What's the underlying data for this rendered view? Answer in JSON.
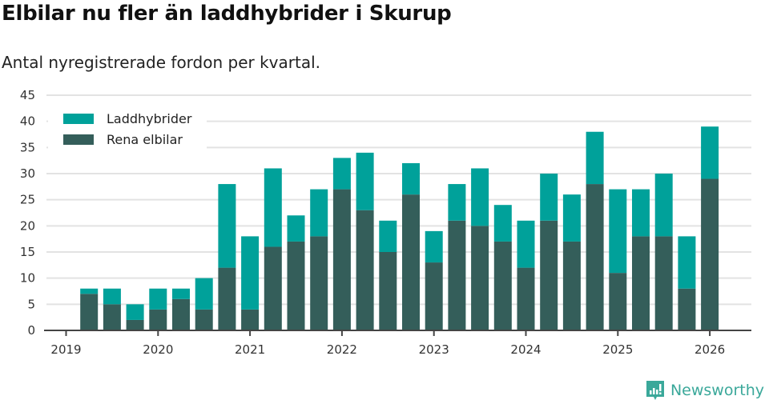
{
  "header": {
    "title": "Elbilar nu fler än laddhybrider i Skurup",
    "subtitle": "Antal nyregistrerade fordon per kvartal."
  },
  "legend": {
    "items": [
      {
        "label": "Laddhybrider",
        "color": "#00a19a"
      },
      {
        "label": "Rena elbilar",
        "color": "#345e5a"
      }
    ]
  },
  "brand": {
    "label": "Newsworthy",
    "icon": "bar-chart-speech-bubble-icon",
    "color": "#3aa89a"
  },
  "colors": {
    "laddhybrider": "#00a19a",
    "rena_elbilar": "#345e5a",
    "grid": "#e3e3e3",
    "axis": "#444444"
  },
  "chart_data": {
    "type": "bar",
    "stacked": true,
    "title": "Elbilar nu fler än laddhybrider i Skurup",
    "subtitle": "Antal nyregistrerade fordon per kvartal.",
    "xlabel": "",
    "ylabel": "",
    "ylim": [
      0,
      45
    ],
    "yticks": [
      0,
      5,
      10,
      15,
      20,
      25,
      30,
      35,
      40,
      45
    ],
    "xticks": [
      "2019",
      "2020",
      "2021",
      "2022",
      "2023",
      "2024",
      "2025",
      "2026"
    ],
    "grid": true,
    "legend_position": "top-left",
    "categories": [
      "2019 Q1",
      "2019 Q2",
      "2019 Q3",
      "2019 Q4",
      "2020 Q1",
      "2020 Q2",
      "2020 Q3",
      "2020 Q4",
      "2021 Q1",
      "2021 Q2",
      "2021 Q3",
      "2021 Q4",
      "2022 Q1",
      "2022 Q2",
      "2022 Q3",
      "2022 Q4",
      "2023 Q1",
      "2023 Q2",
      "2023 Q3",
      "2023 Q4",
      "2024 Q1",
      "2024 Q2",
      "2024 Q3",
      "2024 Q4",
      "2025 Q1",
      "2025 Q2",
      "2025 Q3",
      "2025 Q4",
      "2026 Q1"
    ],
    "series": [
      {
        "name": "Rena elbilar",
        "color": "#345e5a",
        "values": [
          0,
          7,
          5,
          2,
          4,
          6,
          4,
          12,
          4,
          16,
          17,
          18,
          27,
          23,
          15,
          26,
          13,
          21,
          20,
          17,
          12,
          21,
          17,
          28,
          11,
          18,
          18,
          8,
          29
        ]
      },
      {
        "name": "Laddhybrider",
        "color": "#00a19a",
        "values": [
          0,
          1,
          3,
          3,
          4,
          2,
          6,
          16,
          14,
          15,
          5,
          9,
          6,
          11,
          6,
          6,
          6,
          7,
          11,
          7,
          9,
          9,
          9,
          10,
          16,
          9,
          12,
          10,
          10
        ]
      }
    ],
    "totals": [
      0,
      8,
      8,
      5,
      8,
      8,
      10,
      28,
      18,
      31,
      22,
      27,
      33,
      34,
      21,
      32,
      19,
      28,
      31,
      24,
      21,
      30,
      26,
      38,
      27,
      27,
      30,
      18,
      39
    ]
  }
}
